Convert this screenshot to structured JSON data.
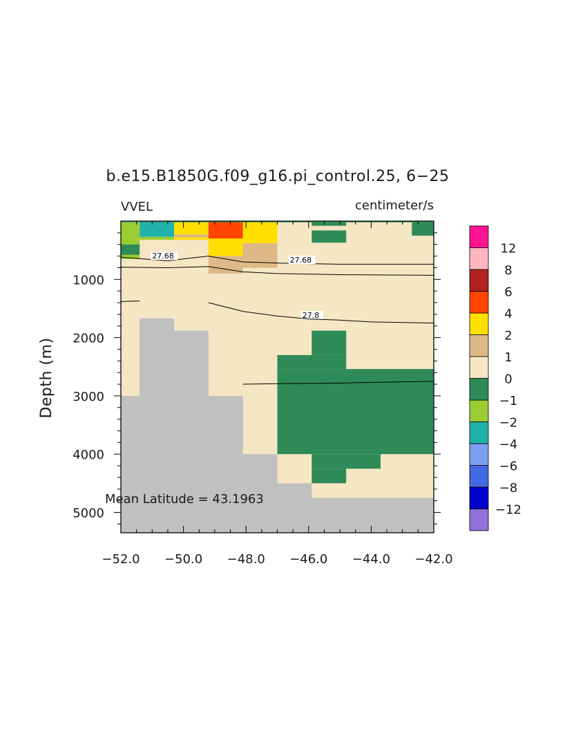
{
  "chart_data": {
    "type": "heatmap",
    "title": "b.e15.B1850G.f09_g16.pi_control.25, 6−25",
    "left_label": "VVEL",
    "right_label": "centimeter/s",
    "ylabel": "Depth (m)",
    "xlabel": "",
    "annotation": "Mean Latitude = 43.1963",
    "xlim": [
      -52.0,
      -42.0
    ],
    "ylim": [
      5350,
      0
    ],
    "x_ticks": [
      -52.0,
      -50.0,
      -48.0,
      -46.0,
      -44.0,
      -42.0
    ],
    "x_tick_labels": [
      "−52.0",
      "−50.0",
      "−48.0",
      "−46.0",
      "−44.0",
      "−42.0"
    ],
    "y_ticks": [
      1000,
      2000,
      3000,
      4000,
      5000
    ],
    "y_tick_labels": [
      "1000",
      "2000",
      "3000",
      "4000",
      "5000"
    ],
    "colorbar": {
      "bins": [
        {
          "label": "",
          "color": "#9370db"
        },
        {
          "label": "−12",
          "color": "#0000cd"
        },
        {
          "label": "−8",
          "color": "#4169e1"
        },
        {
          "label": "−6",
          "color": "#7b9fef"
        },
        {
          "label": "−4",
          "color": "#20b2aa"
        },
        {
          "label": "−2",
          "color": "#9acd32"
        },
        {
          "label": "−1",
          "color": "#2e8b57"
        },
        {
          "label": "0",
          "color": "#f5e6c4"
        },
        {
          "label": "1",
          "color": "#deb887"
        },
        {
          "label": "2",
          "color": "#ffdf00"
        },
        {
          "label": "4",
          "color": "#ff4500"
        },
        {
          "label": "6",
          "color": "#b22222"
        },
        {
          "label": "8",
          "color": "#ffb6c1"
        },
        {
          "label": "12",
          "color": "#ff1493"
        }
      ]
    },
    "colors": {
      "background": "#f5e6c4",
      "land": "#c0c0c0"
    },
    "cells": [
      {
        "x": [
          -52.0,
          -51.4
        ],
        "depth": [
          0,
          20
        ],
        "color": "#20b2aa"
      },
      {
        "x": [
          -51.4,
          -42.0
        ],
        "depth": [
          0,
          20
        ],
        "color": "#2e8b57"
      },
      {
        "x": [
          -52.0,
          -51.4
        ],
        "depth": [
          20,
          400
        ],
        "color": "#9acd32"
      },
      {
        "x": [
          -52.0,
          -51.4
        ],
        "depth": [
          400,
          580
        ],
        "color": "#2e8b57"
      },
      {
        "x": [
          -52.0,
          -51.4
        ],
        "depth": [
          580,
          650
        ],
        "color": "#9acd32"
      },
      {
        "x": [
          -51.4,
          -50.3
        ],
        "depth": [
          20,
          270
        ],
        "color": "#20b2aa"
      },
      {
        "x": [
          -51.4,
          -50.3
        ],
        "depth": [
          270,
          320
        ],
        "color": "#9acd32"
      },
      {
        "x": [
          -50.3,
          -49.2
        ],
        "depth": [
          20,
          230
        ],
        "color": "#ffdf00"
      },
      {
        "x": [
          -50.3,
          -49.2
        ],
        "depth": [
          230,
          280
        ],
        "color": "#deb887"
      },
      {
        "x": [
          -50.3,
          -49.2
        ],
        "depth": [
          280,
          320
        ],
        "color": "#ffdf00"
      },
      {
        "x": [
          -49.2,
          -48.1
        ],
        "depth": [
          20,
          300
        ],
        "color": "#ff4500"
      },
      {
        "x": [
          -49.2,
          -48.1
        ],
        "depth": [
          300,
          600
        ],
        "color": "#ffdf00"
      },
      {
        "x": [
          -49.2,
          -48.1
        ],
        "depth": [
          600,
          900
        ],
        "color": "#deb887"
      },
      {
        "x": [
          -48.1,
          -47.0
        ],
        "depth": [
          20,
          380
        ],
        "color": "#ffdf00"
      },
      {
        "x": [
          -48.1,
          -47.0
        ],
        "depth": [
          380,
          600
        ],
        "color": "#deb887"
      },
      {
        "x": [
          -48.1,
          -47.0
        ],
        "depth": [
          600,
          800
        ],
        "color": "#deb887"
      },
      {
        "x": [
          -45.9,
          -44.8
        ],
        "depth": [
          20,
          80
        ],
        "color": "#2e8b57"
      },
      {
        "x": [
          -45.9,
          -44.8
        ],
        "depth": [
          160,
          370
        ],
        "color": "#2e8b57"
      },
      {
        "x": [
          -42.7,
          -42.0
        ],
        "depth": [
          20,
          250
        ],
        "color": "#2e8b57"
      },
      {
        "x": [
          -45.9,
          -44.8
        ],
        "depth": [
          1880,
          2300
        ],
        "color": "#2e8b57"
      },
      {
        "x": [
          -47.0,
          -44.8
        ],
        "depth": [
          2300,
          2540
        ],
        "color": "#2e8b57"
      },
      {
        "x": [
          -47.0,
          -42.0
        ],
        "depth": [
          2540,
          4000
        ],
        "color": "#2e8b57"
      },
      {
        "x": [
          -45.9,
          -43.7
        ],
        "depth": [
          4000,
          4250
        ],
        "color": "#2e8b57"
      },
      {
        "x": [
          -45.9,
          -44.8
        ],
        "depth": [
          4250,
          4500
        ],
        "color": "#2e8b57"
      },
      {
        "x": [
          -52.0,
          -51.4
        ],
        "depth": [
          3000,
          5350
        ],
        "color": "#c0c0c0"
      },
      {
        "x": [
          -51.4,
          -50.3
        ],
        "depth": [
          1670,
          5350
        ],
        "color": "#c0c0c0"
      },
      {
        "x": [
          -50.3,
          -49.2
        ],
        "depth": [
          1880,
          5350
        ],
        "color": "#c0c0c0"
      },
      {
        "x": [
          -49.2,
          -48.1
        ],
        "depth": [
          3000,
          5350
        ],
        "color": "#c0c0c0"
      },
      {
        "x": [
          -48.1,
          -47.0
        ],
        "depth": [
          4000,
          5350
        ],
        "color": "#c0c0c0"
      },
      {
        "x": [
          -47.0,
          -45.9
        ],
        "depth": [
          4500,
          5350
        ],
        "color": "#c0c0c0"
      },
      {
        "x": [
          -45.9,
          -42.0
        ],
        "depth": [
          4750,
          5350
        ],
        "color": "#c0c0c0"
      }
    ],
    "contours": [
      {
        "label": "27.68",
        "label_pos": [
          -51.0,
          630
        ],
        "points": [
          [
            -52.0,
            620
          ],
          [
            -50.5,
            680
          ],
          [
            -49.2,
            600
          ],
          [
            -48.1,
            700
          ],
          [
            -47.0,
            720
          ],
          [
            -45.0,
            740
          ],
          [
            -42.0,
            740
          ]
        ]
      },
      {
        "label": "27.68",
        "label_pos": [
          -46.6,
          700
        ],
        "points": [
          [
            -52.0,
            790
          ],
          [
            -50.5,
            800
          ],
          [
            -49.2,
            780
          ],
          [
            -48.1,
            870
          ],
          [
            -47.0,
            900
          ],
          [
            -45.0,
            920
          ],
          [
            -42.0,
            930
          ]
        ]
      },
      {
        "label": "27.8",
        "label_pos": [
          -46.2,
          1650
        ],
        "points": [
          [
            -52.0,
            1380
          ],
          [
            -51.4,
            1370
          ]
        ]
      },
      {
        "label": "",
        "label_pos": null,
        "points": [
          [
            -49.2,
            1400
          ],
          [
            -48.1,
            1550
          ],
          [
            -47.0,
            1630
          ],
          [
            -46.0,
            1680
          ],
          [
            -45.0,
            1700
          ],
          [
            -44.0,
            1730
          ],
          [
            -42.0,
            1750
          ]
        ]
      },
      {
        "label": "",
        "label_pos": null,
        "points": [
          [
            -48.1,
            2800
          ],
          [
            -47.0,
            2790
          ],
          [
            -45.0,
            2780
          ],
          [
            -43.0,
            2760
          ],
          [
            -42.0,
            2750
          ]
        ]
      }
    ]
  }
}
